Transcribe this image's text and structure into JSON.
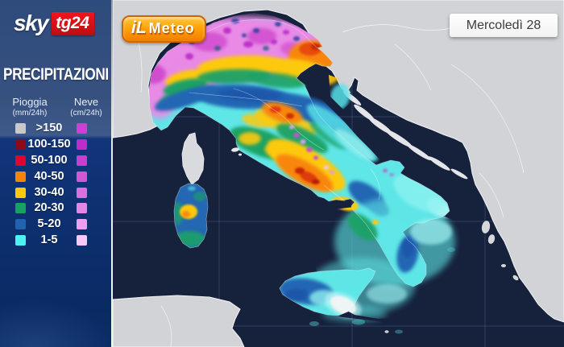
{
  "branding": {
    "sky": "sky",
    "tg24": "tg24",
    "ilmeteo_il": "iL",
    "ilmeteo_meteo": "Meteo"
  },
  "header": {
    "date_label": "Mercoledì 28"
  },
  "legend": {
    "title": "PRECIPITAZIONI",
    "rain_header": "Pioggia",
    "rain_unit": "(mm/24h)",
    "snow_header": "Neve",
    "snow_unit": "(cm/24h)",
    "rows": [
      {
        "label": ">150",
        "rain_color": "#c9c9c9",
        "snow_color": "#cf3fd3"
      },
      {
        "label": "100-150",
        "rain_color": "#90081c",
        "snow_color": "#bf2cc9"
      },
      {
        "label": "50-100",
        "rain_color": "#e20430",
        "snow_color": "#c83fce"
      },
      {
        "label": "40-50",
        "rain_color": "#f8830b",
        "snow_color": "#d157d5"
      },
      {
        "label": "30-40",
        "rain_color": "#fdc90a",
        "snow_color": "#da6fdd"
      },
      {
        "label": "20-30",
        "rain_color": "#17a25f",
        "snow_color": "#e287e5"
      },
      {
        "label": "5-20",
        "rain_color": "#2162b1",
        "snow_color": "#eda0ef"
      },
      {
        "label": "1-5",
        "rain_color": "#4df1ef",
        "snow_color": "#f7c9f8"
      }
    ]
  },
  "map_colors": {
    "sea": "#16213c",
    "neighbor_land": "#d2d3d6",
    "land_border": "#f3f4f6",
    "sidebar_accent": "#12357a",
    "sky_red": "#e01019",
    "ilmeteo_orange": "#ff9d00"
  }
}
